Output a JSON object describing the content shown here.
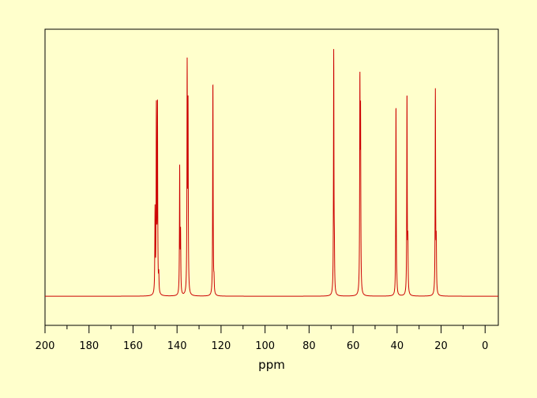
{
  "chart_data": {
    "type": "line",
    "title": "",
    "xlabel": "ppm",
    "ylabel": "",
    "xlim": [
      200,
      -6
    ],
    "x_reversed": true,
    "ylim": [
      -0.12,
      1.1
    ],
    "grid": false,
    "legend": "none",
    "colors": {
      "line": "#CC0000",
      "background": "#FFFFCC",
      "axis": "#000000"
    },
    "x_ticks": [
      200,
      180,
      160,
      140,
      120,
      100,
      80,
      60,
      40,
      20,
      0
    ],
    "x_tick_labels": [
      "200",
      "180",
      "160",
      "140",
      "120",
      "100",
      "80",
      "60",
      "40",
      "20",
      "0"
    ],
    "baseline": 0,
    "peaks": [
      {
        "ppm": 150.0,
        "intensity": 0.34
      },
      {
        "ppm": 149.4,
        "intensity": 0.75
      },
      {
        "ppm": 148.9,
        "intensity": 0.78
      },
      {
        "ppm": 148.3,
        "intensity": 0.07
      },
      {
        "ppm": 138.8,
        "intensity": 0.52
      },
      {
        "ppm": 138.4,
        "intensity": 0.24
      },
      {
        "ppm": 135.4,
        "intensity": 0.92
      },
      {
        "ppm": 135.0,
        "intensity": 0.75
      },
      {
        "ppm": 123.7,
        "intensity": 0.89
      },
      {
        "ppm": 123.2,
        "intensity": 0.05
      },
      {
        "ppm": 68.8,
        "intensity": 1.0
      },
      {
        "ppm": 68.5,
        "intensity": 0.13
      },
      {
        "ppm": 56.9,
        "intensity": 0.84
      },
      {
        "ppm": 56.6,
        "intensity": 0.69
      },
      {
        "ppm": 40.5,
        "intensity": 0.79
      },
      {
        "ppm": 40.1,
        "intensity": 0.03
      },
      {
        "ppm": 35.5,
        "intensity": 0.83
      },
      {
        "ppm": 35.1,
        "intensity": 0.2
      },
      {
        "ppm": 22.6,
        "intensity": 0.84
      },
      {
        "ppm": 22.2,
        "intensity": 0.2
      }
    ]
  }
}
